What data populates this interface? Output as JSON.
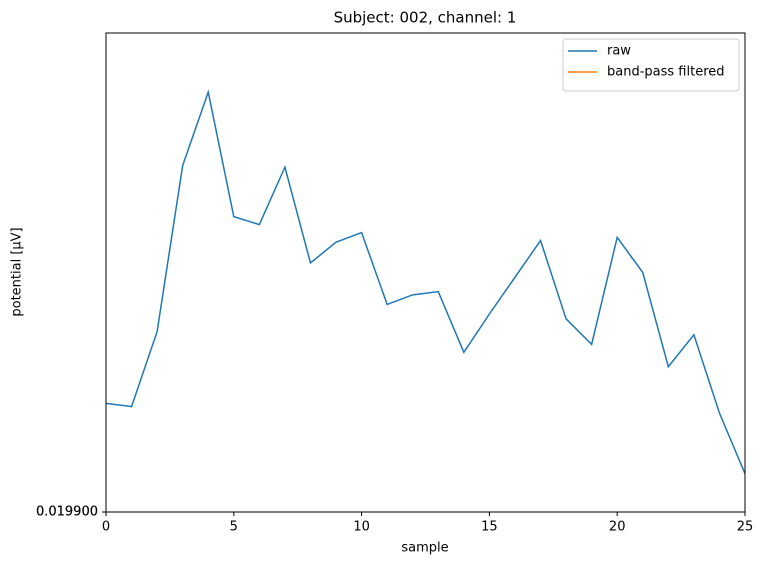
{
  "chart_data": {
    "type": "line",
    "title": "Subject: 002, channel: 1",
    "xlabel": "sample",
    "ylabel": "potential [µV]",
    "x": [
      0,
      1,
      2,
      3,
      4,
      5,
      6,
      7,
      8,
      9,
      10,
      11,
      12,
      13,
      14,
      15,
      16,
      17,
      18,
      19,
      20,
      21,
      22,
      23,
      24,
      25
    ],
    "series": [
      {
        "name": "raw",
        "color": "#1f77b4",
        "values": [
          0.0199068,
          0.0199066,
          0.0199113,
          0.0199217,
          0.0199263,
          0.0199185,
          0.019918,
          0.0199216,
          0.0199156,
          0.0199169,
          0.0199175,
          0.019913,
          0.0199136,
          0.0199138,
          0.01991,
          0.0199124,
          0.0199147,
          0.019917,
          0.0199121,
          0.0199105,
          0.0199172,
          0.019915,
          0.0199091,
          0.0199111,
          0.0199062,
          0.0199024
        ]
      },
      {
        "name": "band-pass filtered",
        "color": "#ff7f0e",
        "values": [
          null,
          null,
          null,
          null,
          null,
          null,
          null,
          null,
          null,
          null,
          null,
          null,
          null,
          null,
          null,
          null,
          null,
          null,
          null,
          null,
          null,
          null,
          null,
          null,
          null,
          null
        ]
      }
    ],
    "xlim": [
      0,
      25
    ],
    "xticks": [
      0,
      5,
      10,
      15,
      20,
      25
    ],
    "ylim": [
      0.0199,
      0.01993
    ],
    "yticks": [
      {
        "value": 0.0199,
        "label": "0.019900"
      },
      {
        "value": 0.0199,
        "label": "0.019900"
      }
    ],
    "legend": "upper right",
    "grid": false
  }
}
